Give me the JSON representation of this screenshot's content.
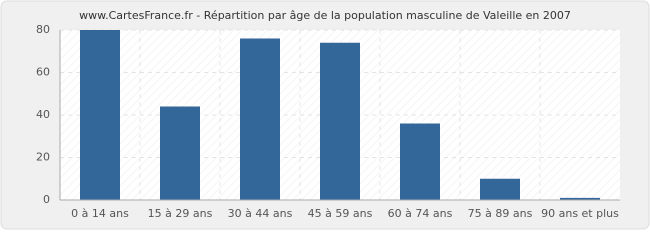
{
  "chart_data": {
    "type": "bar",
    "title": "www.CartesFrance.fr - Répartition par âge de la population masculine de Valeille en 2007",
    "categories": [
      "0 à 14 ans",
      "15 à 29 ans",
      "30 à 44 ans",
      "45 à 59 ans",
      "60 à 74 ans",
      "75 à 89 ans",
      "90 ans et plus"
    ],
    "values": [
      80,
      44,
      76,
      74,
      36,
      10,
      1
    ],
    "color": "#336699",
    "ylim": [
      0,
      80
    ],
    "yticks": [
      0,
      20,
      40,
      60,
      80
    ],
    "grid": true
  }
}
